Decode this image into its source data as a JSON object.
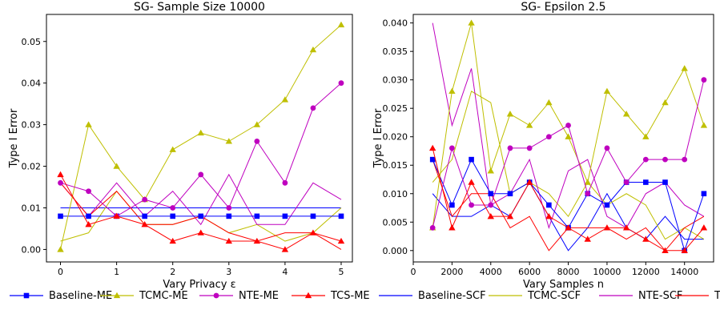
{
  "chart_data": [
    {
      "type": "line",
      "title": "SG- Sample Size 10000",
      "xlabel": "Vary Privacy ε",
      "ylabel": "Type I Error",
      "xlim": [
        -0.25,
        5.2
      ],
      "ylim": [
        -0.003,
        0.0565
      ],
      "xticks": [
        0,
        1,
        2,
        3,
        4,
        5
      ],
      "xtick_labels": [
        "0",
        "1",
        "2",
        "3",
        "4",
        "5"
      ],
      "yticks": [
        0,
        0.01,
        0.02,
        0.03,
        0.04,
        0.05
      ],
      "ytick_labels": [
        "0.00",
        "0.01",
        "0.02",
        "0.03",
        "0.04",
        "0.05"
      ],
      "x": [
        0,
        0.5,
        1,
        1.5,
        2,
        2.5,
        3,
        3.5,
        4,
        4.5,
        5
      ],
      "series": [
        {
          "name": "Baseline-ME",
          "color": "#0000ff",
          "marker": "square",
          "values": [
            0.008,
            0.008,
            0.008,
            0.008,
            0.008,
            0.008,
            0.008,
            0.008,
            0.008,
            0.008,
            0.008
          ]
        },
        {
          "name": "TCMC-ME",
          "color": "#bfbf00",
          "marker": "triangle",
          "values": [
            0.0,
            0.03,
            0.02,
            0.012,
            0.024,
            0.028,
            0.026,
            0.03,
            0.036,
            0.048,
            0.054
          ]
        },
        {
          "name": "NTE-ME",
          "color": "#bf00bf",
          "marker": "circle",
          "values": [
            0.016,
            0.014,
            0.008,
            0.012,
            0.01,
            0.018,
            0.01,
            0.026,
            0.016,
            0.034,
            0.04
          ]
        },
        {
          "name": "TCS-ME",
          "color": "#ff0000",
          "marker": "triangle",
          "values": [
            0.018,
            0.006,
            0.008,
            0.006,
            0.002,
            0.004,
            0.002,
            0.002,
            0.0,
            0.004,
            0.002
          ]
        },
        {
          "name": "Baseline-SCF",
          "color": "#0000ff",
          "marker": "none",
          "values": [
            0.01,
            0.01,
            0.01,
            0.01,
            0.01,
            0.01,
            0.01,
            0.01,
            0.01,
            0.01,
            0.01
          ]
        },
        {
          "name": "TCMC-SCF",
          "color": "#bfbf00",
          "marker": "none",
          "values": [
            0.002,
            0.004,
            0.014,
            0.006,
            0.006,
            0.008,
            0.004,
            0.006,
            0.002,
            0.004,
            0.01
          ]
        },
        {
          "name": "NTE-SCF",
          "color": "#bf00bf",
          "marker": "none",
          "values": [
            0.016,
            0.008,
            0.016,
            0.008,
            0.014,
            0.006,
            0.018,
            0.006,
            0.006,
            0.016,
            0.012
          ]
        },
        {
          "name": "TCS-SCF",
          "color": "#ff0000",
          "marker": "none",
          "values": [
            0.016,
            0.008,
            0.014,
            0.006,
            0.006,
            0.008,
            0.004,
            0.002,
            0.004,
            0.004,
            0.0
          ]
        }
      ]
    },
    {
      "type": "line",
      "title": "SG- Epsilon 2.5",
      "xlabel": "Vary Samples n",
      "ylabel": "Type I Error",
      "xlim": [
        0,
        15500
      ],
      "ylim": [
        -0.002,
        0.0415
      ],
      "xticks": [
        0,
        2000,
        4000,
        6000,
        8000,
        10000,
        12000,
        14000
      ],
      "xtick_labels": [
        "0",
        "2000",
        "4000",
        "6000",
        "8000",
        "10000",
        "12000",
        "14000"
      ],
      "yticks": [
        0,
        0.005,
        0.01,
        0.015,
        0.02,
        0.025,
        0.03,
        0.035,
        0.04
      ],
      "ytick_labels": [
        "0.000",
        "0.005",
        "0.010",
        "0.015",
        "0.020",
        "0.025",
        "0.030",
        "0.035",
        "0.040"
      ],
      "x": [
        1000,
        2000,
        3000,
        4000,
        5000,
        6000,
        7000,
        8000,
        9000,
        10000,
        11000,
        12000,
        13000,
        14000,
        15000
      ],
      "series": [
        {
          "name": "Baseline-ME",
          "color": "#0000ff",
          "marker": "square",
          "values": [
            0.016,
            0.008,
            0.016,
            0.01,
            0.01,
            0.012,
            0.008,
            0.004,
            0.01,
            0.008,
            0.012,
            0.012,
            0.012,
            0.0,
            0.01
          ]
        },
        {
          "name": "TCMC-ME",
          "color": "#bfbf00",
          "marker": "triangle",
          "values": [
            0.004,
            0.028,
            0.04,
            0.014,
            0.024,
            0.022,
            0.026,
            0.02,
            0.012,
            0.028,
            0.024,
            0.02,
            0.026,
            0.032,
            0.022
          ]
        },
        {
          "name": "NTE-ME",
          "color": "#bf00bf",
          "marker": "circle",
          "values": [
            0.004,
            0.018,
            0.008,
            0.008,
            0.018,
            0.018,
            0.02,
            0.022,
            0.01,
            0.018,
            0.012,
            0.016,
            0.016,
            0.016,
            0.03
          ]
        },
        {
          "name": "TCS-ME",
          "color": "#ff0000",
          "marker": "triangle",
          "values": [
            0.018,
            0.004,
            0.012,
            0.006,
            0.006,
            0.012,
            0.006,
            0.004,
            0.002,
            0.004,
            0.004,
            0.002,
            0.0,
            0.0,
            0.004
          ]
        },
        {
          "name": "Baseline-SCF",
          "color": "#0000ff",
          "marker": "none",
          "values": [
            0.01,
            0.006,
            0.006,
            0.008,
            0.006,
            0.012,
            0.006,
            0.0,
            0.004,
            0.01,
            0.004,
            0.002,
            0.006,
            0.002,
            0.002
          ]
        },
        {
          "name": "TCMC-SCF",
          "color": "#bfbf00",
          "marker": "none",
          "values": [
            0.012,
            0.016,
            0.028,
            0.026,
            0.01,
            0.012,
            0.01,
            0.006,
            0.012,
            0.008,
            0.01,
            0.008,
            0.002,
            0.004,
            0.002
          ]
        },
        {
          "name": "NTE-SCF",
          "color": "#bf00bf",
          "marker": "none",
          "values": [
            0.04,
            0.022,
            0.032,
            0.008,
            0.01,
            0.016,
            0.004,
            0.014,
            0.016,
            0.006,
            0.004,
            0.01,
            0.012,
            0.008,
            0.006
          ]
        },
        {
          "name": "TCS-SCF",
          "color": "#ff0000",
          "marker": "none",
          "values": [
            0.016,
            0.006,
            0.01,
            0.01,
            0.004,
            0.006,
            0.0,
            0.004,
            0.004,
            0.004,
            0.002,
            0.004,
            0.0,
            0.004,
            0.006
          ]
        }
      ]
    }
  ],
  "legend": {
    "placement": "bottom",
    "entries": [
      {
        "name": "Baseline-ME",
        "color": "#0000ff",
        "marker": "square"
      },
      {
        "name": "TCMC-ME",
        "color": "#bfbf00",
        "marker": "triangle"
      },
      {
        "name": "NTE-ME",
        "color": "#bf00bf",
        "marker": "circle"
      },
      {
        "name": "TCS-ME",
        "color": "#ff0000",
        "marker": "triangle"
      },
      {
        "name": "Baseline-SCF",
        "color": "#0000ff",
        "marker": "none"
      },
      {
        "name": "TCMC-SCF",
        "color": "#bfbf00",
        "marker": "none"
      },
      {
        "name": "NTE-SCF",
        "color": "#bf00bf",
        "marker": "none"
      },
      {
        "name": "TCS-SCF",
        "color": "#ff0000",
        "marker": "none"
      }
    ]
  }
}
